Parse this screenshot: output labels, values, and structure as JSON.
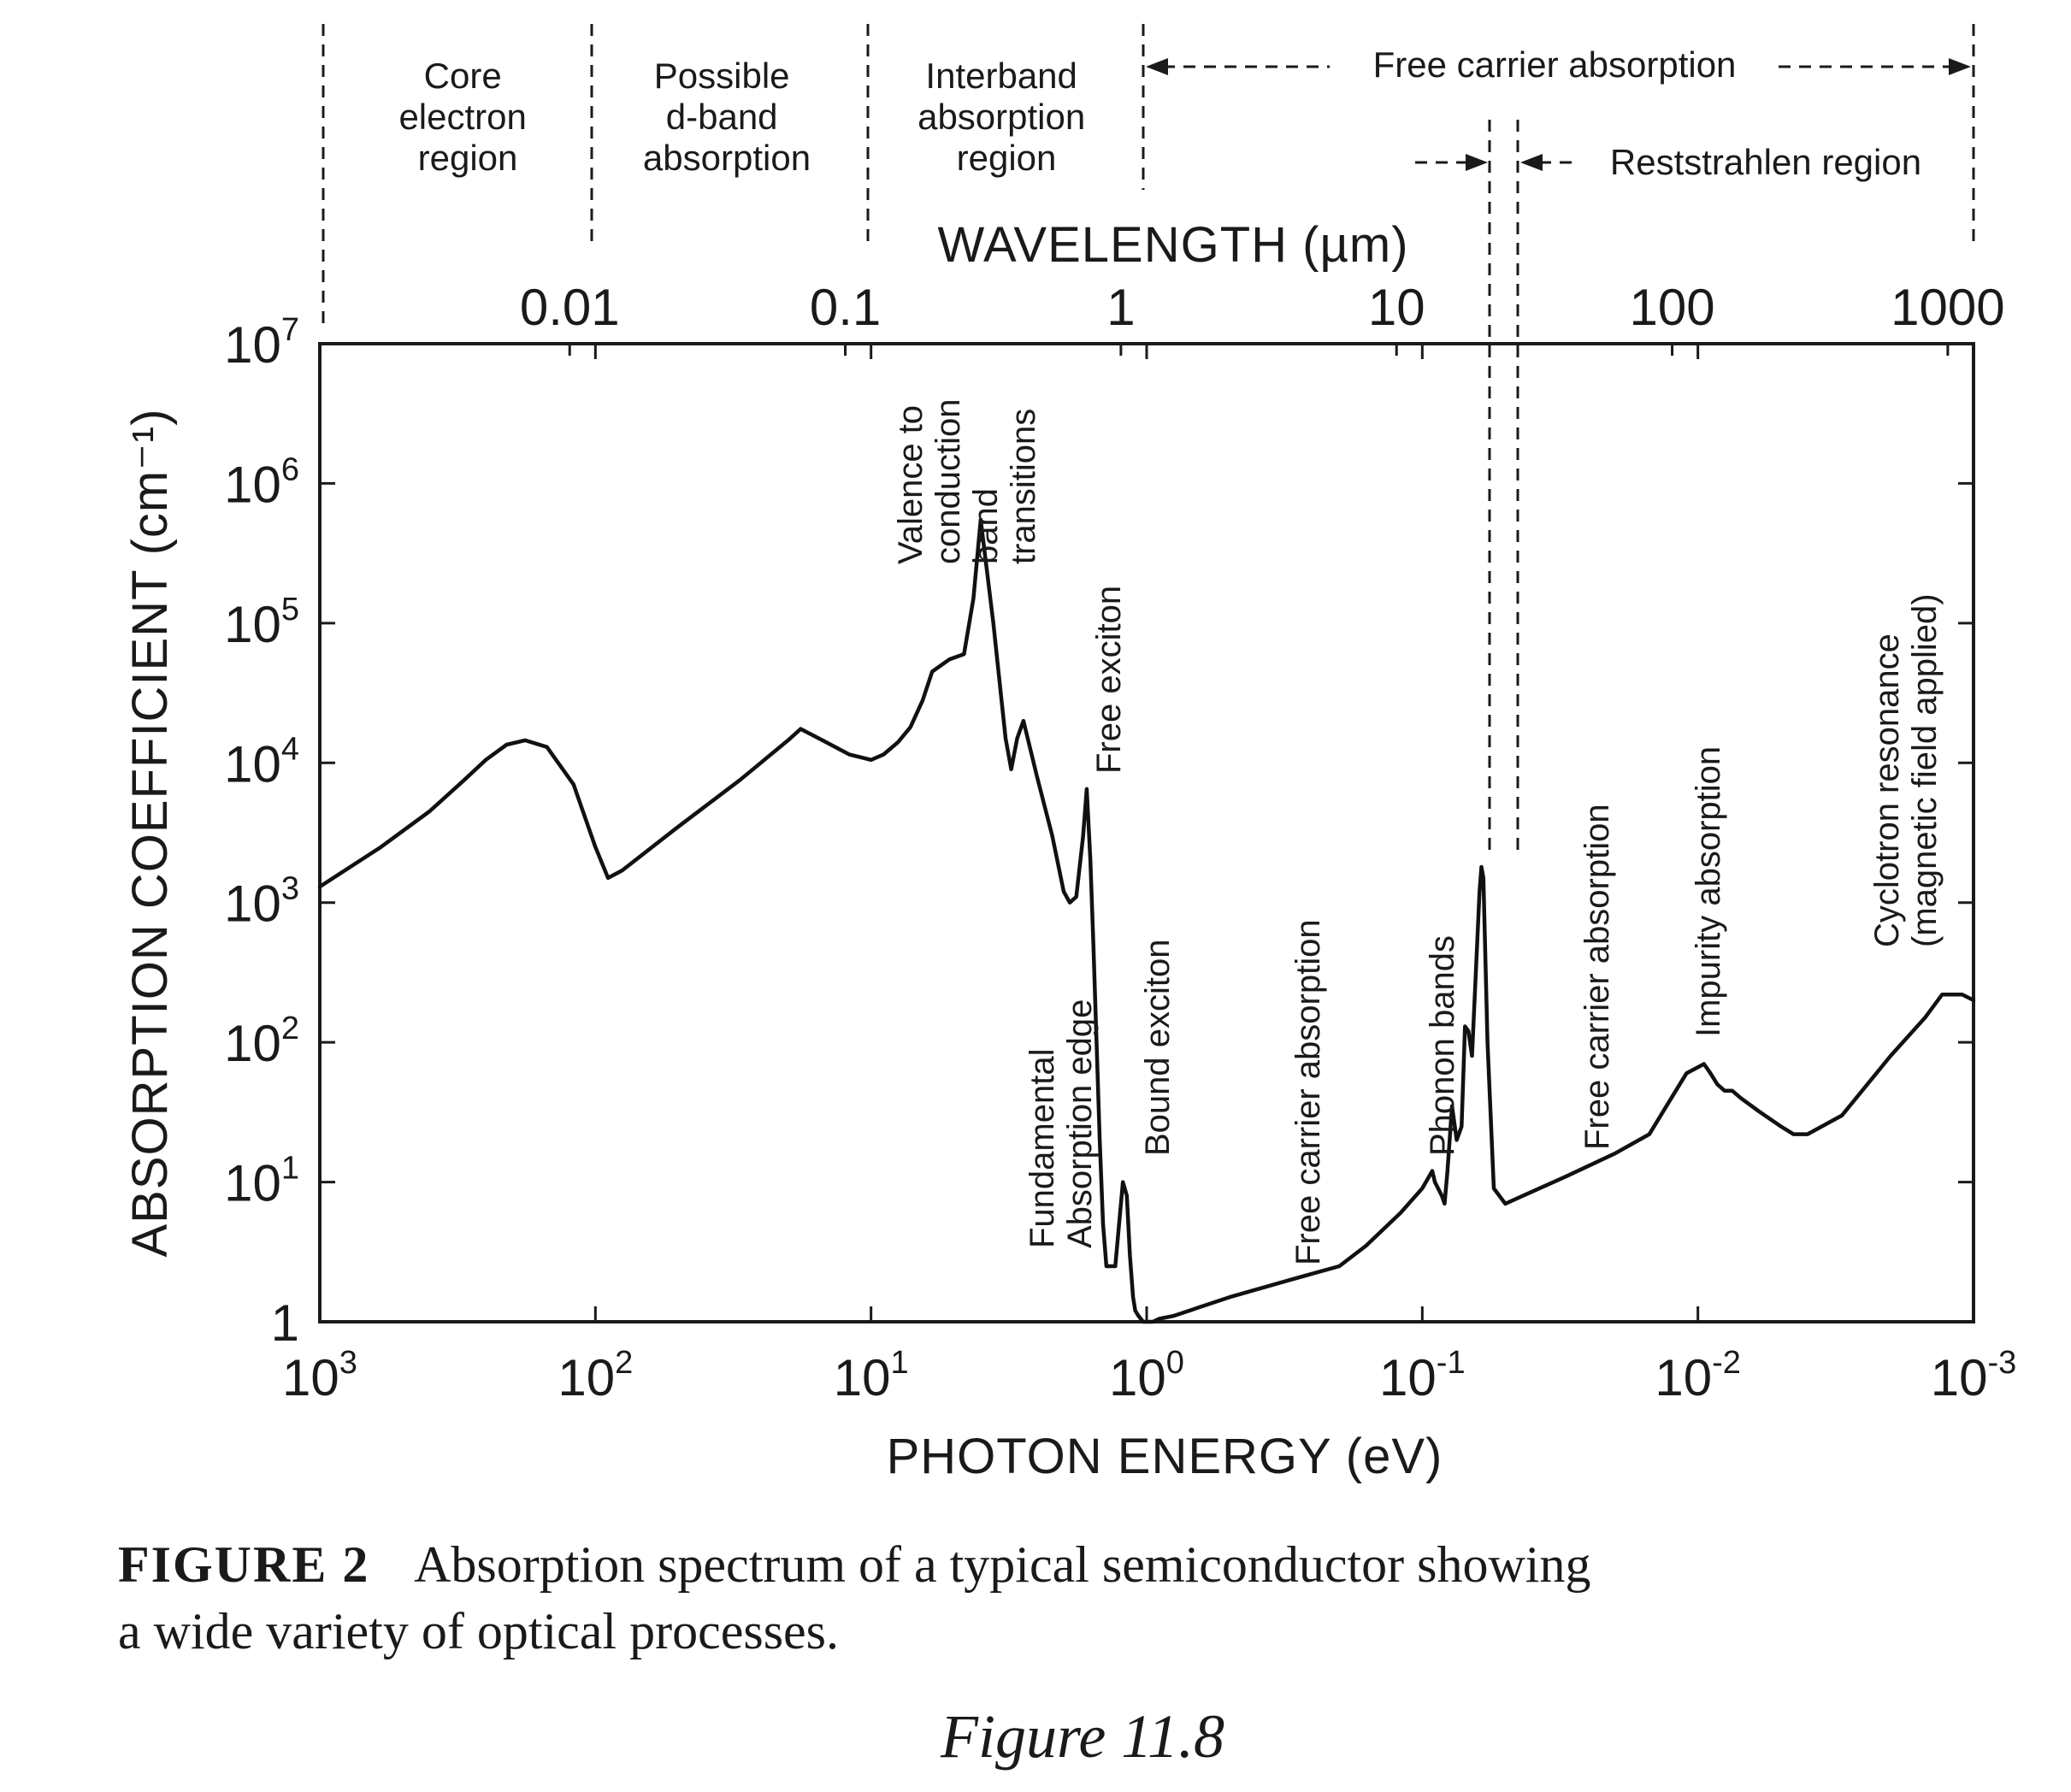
{
  "chart_data": {
    "type": "line",
    "xlabel": "PHOTON ENERGY (eV)",
    "ylabel": "ABSORPTION COEFFICIENT (cm⁻¹)",
    "x2label": "WAVELENGTH (µm)",
    "x_scale": "log",
    "x_direction": "decreasing",
    "y_scale": "log",
    "xlim": [
      1000,
      0.001
    ],
    "ylim": [
      1,
      10000000
    ],
    "x_ticks": [
      {
        "value": 1000,
        "base": "10",
        "exp": "3"
      },
      {
        "value": 100,
        "base": "10",
        "exp": "2"
      },
      {
        "value": 10,
        "base": "10",
        "exp": "1"
      },
      {
        "value": 1,
        "base": "10",
        "exp": "0"
      },
      {
        "value": 0.1,
        "base": "10",
        "exp": "-1"
      },
      {
        "value": 0.01,
        "base": "10",
        "exp": "-2"
      },
      {
        "value": 0.001,
        "base": "10",
        "exp": "-3"
      }
    ],
    "y_ticks": [
      {
        "value": 1,
        "base": "1",
        "exp": ""
      },
      {
        "value": 10,
        "base": "10",
        "exp": "1"
      },
      {
        "value": 100,
        "base": "10",
        "exp": "2"
      },
      {
        "value": 1000,
        "base": "10",
        "exp": "3"
      },
      {
        "value": 10000,
        "base": "10",
        "exp": "4"
      },
      {
        "value": 100000,
        "base": "10",
        "exp": "5"
      },
      {
        "value": 1000000,
        "base": "10",
        "exp": "6"
      },
      {
        "value": 10000000,
        "base": "10",
        "exp": "7"
      }
    ],
    "top_ticks": [
      {
        "label": "0.01",
        "energy": 124
      },
      {
        "label": "0.1",
        "energy": 12.4
      },
      {
        "label": "1",
        "energy": 1.24
      },
      {
        "label": "10",
        "energy": 0.124
      },
      {
        "label": "100",
        "energy": 0.0124
      },
      {
        "label": "1000",
        "energy": 0.00124
      }
    ],
    "series": [
      {
        "x": [
          1000,
          600,
          400,
          300,
          250,
          210,
          180,
          150,
          120,
          100,
          90,
          80,
          50,
          30,
          20,
          18,
          15,
          12,
          10,
          9,
          8,
          7.2,
          6.5,
          6,
          5.2,
          4.6,
          4.25,
          4,
          3.6,
          3.25,
          3.1,
          2.95,
          2.8,
          2.5,
          2.2,
          2.0,
          1.9,
          1.8,
          1.7,
          1.65,
          1.6,
          1.56,
          1.52,
          1.48,
          1.44,
          1.4,
          1.3,
          1.22,
          1.18,
          1.15,
          1.12,
          1.1,
          1.07,
          1.03,
          0.99,
          0.95,
          0.9,
          0.8,
          0.5,
          0.3,
          0.2,
          0.16,
          0.12,
          0.1,
          0.092,
          0.09,
          0.085,
          0.083,
          0.081,
          0.078,
          0.075,
          0.072,
          0.07,
          0.068,
          0.066,
          0.064,
          0.062,
          0.061,
          0.06,
          0.058,
          0.055,
          0.05,
          0.03,
          0.02,
          0.015,
          0.013,
          0.011,
          0.0095,
          0.009,
          0.0085,
          0.008,
          0.0075,
          0.007,
          0.006,
          0.005,
          0.0045,
          0.004,
          0.003,
          0.002,
          0.0015,
          0.0013,
          0.0011,
          0.001
        ],
        "y": [
          1300,
          2500,
          4500,
          7500,
          10500,
          13500,
          14500,
          13000,
          7000,
          2500,
          1500,
          1700,
          3500,
          7500,
          14500,
          17500,
          14500,
          11500,
          10500,
          11500,
          14000,
          18000,
          28000,
          45000,
          55000,
          60000,
          150000,
          550000,
          100000,
          15000,
          9000,
          15000,
          20000,
          8000,
          3000,
          1200,
          1000,
          1100,
          3000,
          6500,
          2000,
          500,
          100,
          20,
          5,
          2.5,
          2.5,
          10,
          8,
          3,
          1.5,
          1.2,
          1.1,
          1.0,
          1.0,
          1.0,
          1.05,
          1.1,
          1.5,
          2,
          2.5,
          3.5,
          6,
          9,
          12,
          10,
          8,
          7,
          12,
          35,
          20,
          25,
          130,
          120,
          80,
          300,
          1200,
          1800,
          1500,
          100,
          9,
          7,
          11,
          16,
          22,
          35,
          60,
          70,
          60,
          50,
          45,
          45,
          40,
          32,
          25,
          22,
          22,
          30,
          80,
          150,
          220,
          220,
          200
        ]
      }
    ],
    "regions": [
      {
        "label": [
          "Core",
          "electron",
          "region"
        ]
      },
      {
        "label": [
          "Possible",
          "d-band",
          "absorption"
        ]
      },
      {
        "label": [
          "Interband",
          "absorption",
          "region"
        ]
      },
      {
        "label": [
          "Free carrier absorption"
        ]
      },
      {
        "label": [
          "Reststrahlen region"
        ]
      }
    ],
    "annotations": [
      {
        "lines": [
          "Valence to",
          "conduction",
          "band",
          "transitions"
        ]
      },
      {
        "lines": [
          "Free exciton"
        ]
      },
      {
        "lines": [
          "Fundamental",
          "Absorption edge"
        ]
      },
      {
        "lines": [
          "Bound exciton"
        ]
      },
      {
        "lines": [
          "Free carrier absorption"
        ]
      },
      {
        "lines": [
          "Phonon bands"
        ]
      },
      {
        "lines": [
          "Free carrier absorption"
        ]
      },
      {
        "lines": [
          "Impurity absorption"
        ]
      },
      {
        "lines": [
          "Cyclotron resonance",
          "(magnetic field applied)"
        ]
      }
    ]
  },
  "caption": {
    "label": "FIGURE 2",
    "line1": "Absorption spectrum of a typical semiconductor showing",
    "line2": "a wide variety of optical processes."
  },
  "figure_number": "Figure 11.8"
}
